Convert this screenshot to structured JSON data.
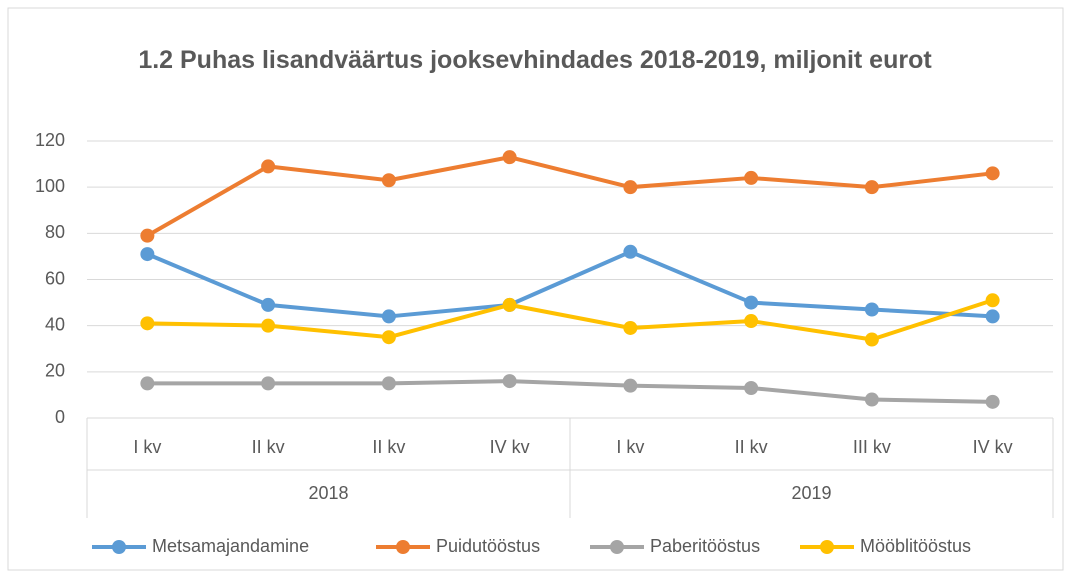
{
  "chart_data": {
    "type": "line",
    "title": "1.2 Puhas lisandväärtus jooksevhindades 2018-2019, miljonit eurot",
    "categories": [
      "I kv",
      "II kv",
      "II kv",
      "IV kv",
      "I kv",
      "II kv",
      "III kv",
      "IV kv"
    ],
    "groups": [
      "2018",
      "2019"
    ],
    "series": [
      {
        "name": "Metsamajandamine",
        "color": "#5b9bd5",
        "values": [
          71,
          49,
          44,
          49,
          72,
          50,
          47,
          44
        ]
      },
      {
        "name": "Puidutööstus",
        "color": "#ed7d31",
        "values": [
          79,
          109,
          103,
          113,
          100,
          104,
          100,
          106
        ]
      },
      {
        "name": "Paberitööstus",
        "color": "#a5a5a5",
        "values": [
          15,
          15,
          15,
          16,
          14,
          13,
          8,
          7
        ]
      },
      {
        "name": "Mööblitööstus",
        "color": "#ffc000",
        "values": [
          41,
          40,
          35,
          49,
          39,
          42,
          34,
          51
        ]
      }
    ],
    "ylim": [
      0,
      120
    ],
    "yticks": [
      0,
      20,
      40,
      60,
      80,
      100,
      120
    ],
    "grid": true,
    "legend": "bottom"
  }
}
